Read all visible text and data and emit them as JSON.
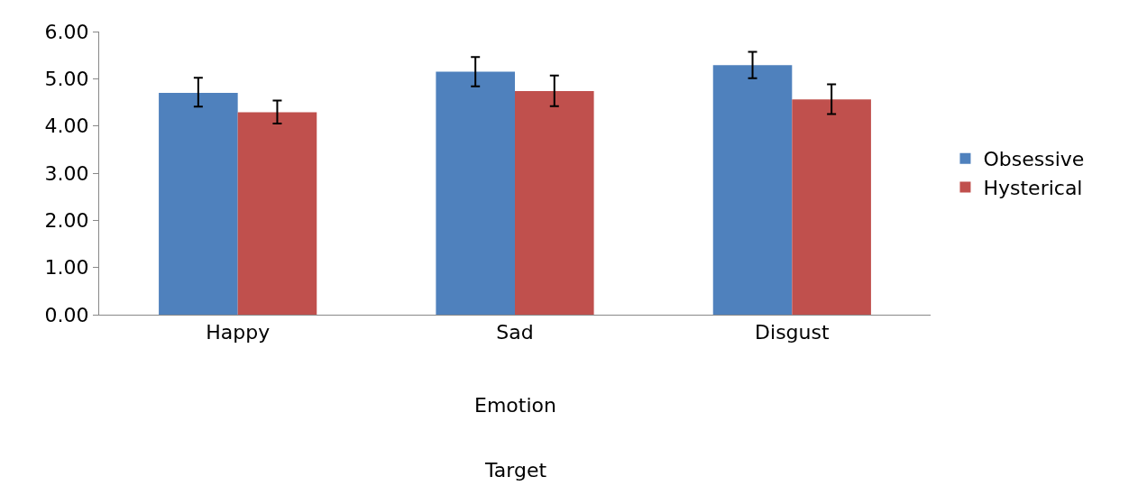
{
  "chart_data": {
    "type": "bar",
    "categories": [
      "Happy",
      "Sad",
      "Disgust"
    ],
    "series": [
      {
        "name": "Obsessive",
        "color": "#4f81bd",
        "values": [
          4.7,
          5.15,
          5.29
        ],
        "errors": [
          [
            4.41,
            5.02
          ],
          [
            4.84,
            5.46
          ],
          [
            5.01,
            5.57
          ]
        ]
      },
      {
        "name": "Hysterical",
        "color": "#c0504d",
        "values": [
          4.29,
          4.74,
          4.56
        ],
        "errors": [
          [
            4.05,
            4.54
          ],
          [
            4.42,
            5.07
          ],
          [
            4.25,
            4.88
          ]
        ]
      }
    ],
    "annotations": [
      "Emotion",
      "Target"
    ],
    "ylim": [
      0,
      6
    ],
    "yticks": [
      {
        "value": 0,
        "label": "0.00"
      },
      {
        "value": 1,
        "label": "1.00"
      },
      {
        "value": 2,
        "label": "2.00"
      },
      {
        "value": 3,
        "label": "3.00"
      },
      {
        "value": 4,
        "label": "4.00"
      },
      {
        "value": 5,
        "label": "5.00"
      },
      {
        "value": 6,
        "label": "6.00"
      }
    ],
    "legend": "right"
  }
}
